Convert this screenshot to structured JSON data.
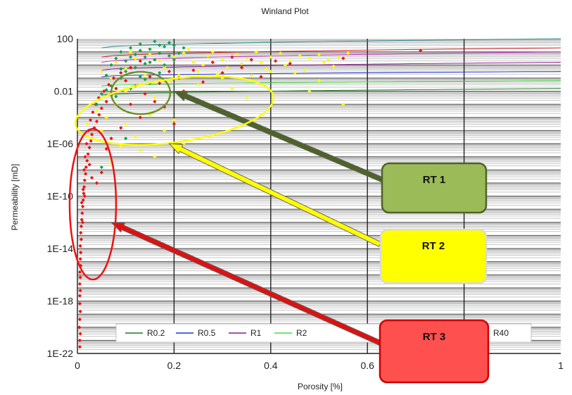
{
  "chart_data": {
    "type": "scatter",
    "title": "Winland Plot",
    "xlabel": "Porosity [%]",
    "ylabel": "Permeability [mD]",
    "xlim": [
      0,
      1
    ],
    "ylim_log10": [
      -22,
      2
    ],
    "y_scale": "log",
    "grid": true,
    "x_ticks": [
      {
        "value": 0,
        "label": "0"
      },
      {
        "value": 0.2,
        "label": "0.2"
      },
      {
        "value": 0.4,
        "label": "0.4"
      },
      {
        "value": 0.6,
        "label": "0.6"
      },
      {
        "value": 1,
        "label": "1"
      }
    ],
    "y_ticks": [
      {
        "log": 2,
        "label": "100"
      },
      {
        "log": -2,
        "label": "0.01"
      },
      {
        "log": -6,
        "label": "1E-06"
      },
      {
        "log": -10,
        "label": "1E-10"
      },
      {
        "log": -14,
        "label": "1E-14"
      },
      {
        "log": -18,
        "label": "1E-18"
      },
      {
        "log": -22,
        "label": "1E-22"
      }
    ],
    "series": [
      {
        "color": "#ffff00",
        "points": [
          [
            0.05,
            -0.5
          ],
          [
            0.07,
            -1
          ],
          [
            0.08,
            0.2
          ],
          [
            0.1,
            -0.3
          ],
          [
            0.12,
            0.5
          ],
          [
            0.14,
            -0.8
          ],
          [
            0.15,
            0.8
          ],
          [
            0.17,
            0.3
          ],
          [
            0.18,
            -0.2
          ],
          [
            0.2,
            0.6
          ],
          [
            0.22,
            0.9
          ],
          [
            0.24,
            0.2
          ],
          [
            0.25,
            -0.5
          ],
          [
            0.27,
            0.7
          ],
          [
            0.28,
            1.0
          ],
          [
            0.3,
            0.4
          ],
          [
            0.31,
            -0.2
          ],
          [
            0.33,
            0.8
          ],
          [
            0.35,
            0.5
          ],
          [
            0.37,
            1.0
          ],
          [
            0.38,
            0.2
          ],
          [
            0.4,
            0.6
          ],
          [
            0.42,
            0.9
          ],
          [
            0.44,
            0.3
          ],
          [
            0.46,
            0.7
          ],
          [
            0.48,
            0.5
          ],
          [
            0.5,
            0.8
          ],
          [
            0.52,
            0.4
          ],
          [
            0.54,
            0.6
          ],
          [
            0.56,
            0.9
          ],
          [
            0.25,
            -1.5
          ],
          [
            0.3,
            -1.0
          ],
          [
            0.32,
            -1.8
          ],
          [
            0.36,
            -0.8
          ],
          [
            0.4,
            -0.5
          ],
          [
            0.45,
            -0.6
          ],
          [
            0.5,
            -1.2
          ],
          [
            0.55,
            -3.0
          ],
          [
            0.48,
            -2.0
          ],
          [
            0.35,
            -2.5
          ],
          [
            0.02,
            -4.5
          ],
          [
            0.04,
            -3.5
          ],
          [
            0.05,
            -5.0
          ],
          [
            0.06,
            -4.0
          ],
          [
            0.08,
            -3.0
          ],
          [
            0.1,
            -4.5
          ],
          [
            0.12,
            -5.5
          ],
          [
            0.15,
            -3.8
          ],
          [
            0.18,
            -5.0
          ],
          [
            0.2,
            -4.2
          ],
          [
            0.22,
            -6.0
          ],
          [
            0.13,
            -6.5
          ],
          [
            0.16,
            -7.0
          ],
          [
            0.09,
            -6.2
          ],
          [
            0.07,
            -7.5
          ],
          [
            0.1,
            -2.0
          ],
          [
            0.13,
            -1.5
          ],
          [
            0.16,
            -2.5
          ],
          [
            0.19,
            -1.2
          ],
          [
            0.21,
            -0.8
          ],
          [
            0.26,
            0.0
          ],
          [
            0.29,
            -0.7
          ],
          [
            0.34,
            0.1
          ],
          [
            0.39,
            -0.3
          ],
          [
            0.43,
            0.0
          ],
          [
            0.47,
            -0.4
          ],
          [
            0.51,
            0.2
          ],
          [
            0.53,
            -0.1
          ],
          [
            0.11,
            1.0
          ],
          [
            0.23,
            1.2
          ]
        ]
      },
      {
        "color": "#ee1111",
        "points": [
          [
            0.005,
            -21.5
          ],
          [
            0.005,
            -21
          ],
          [
            0.006,
            -20.5
          ],
          [
            0.004,
            -20
          ],
          [
            0.005,
            -19.4
          ],
          [
            0.006,
            -18.8
          ],
          [
            0.005,
            -18.2
          ],
          [
            0.005,
            -17.6
          ],
          [
            0.006,
            -17.2
          ],
          [
            0.005,
            -16.7
          ],
          [
            0.006,
            -16.2
          ],
          [
            0.005,
            -15.8
          ],
          [
            0.007,
            -15.3
          ],
          [
            0.006,
            -14.8
          ],
          [
            0.007,
            -14.3
          ],
          [
            0.006,
            -13.8
          ],
          [
            0.008,
            -13.3
          ],
          [
            0.007,
            -12.8
          ],
          [
            0.008,
            -12.3
          ],
          [
            0.009,
            -11.8
          ],
          [
            0.01,
            -11.3
          ],
          [
            0.011,
            -10.8
          ],
          [
            0.012,
            -10.3
          ],
          [
            0.013,
            -9.8
          ],
          [
            0.014,
            -9.3
          ],
          [
            0.015,
            -8.8
          ],
          [
            0.017,
            -8.3
          ],
          [
            0.018,
            -7.8
          ],
          [
            0.02,
            -7.3
          ],
          [
            0.022,
            -6.8
          ],
          [
            0.025,
            -6.3
          ],
          [
            0.028,
            -5.8
          ],
          [
            0.03,
            -5.3
          ],
          [
            0.035,
            -4.8
          ],
          [
            0.04,
            -4.3
          ],
          [
            0.045,
            -3.8
          ],
          [
            0.05,
            -3.3
          ],
          [
            0.06,
            -2.8
          ],
          [
            0.07,
            -2.3
          ],
          [
            0.08,
            -1.8
          ],
          [
            0.009,
            -10.5
          ],
          [
            0.012,
            -9.5
          ],
          [
            0.014,
            -8.0
          ],
          [
            0.016,
            -7.0
          ],
          [
            0.019,
            -6.0
          ],
          [
            0.023,
            -5.0
          ],
          [
            0.027,
            -4.2
          ],
          [
            0.032,
            -3.6
          ],
          [
            0.038,
            -3.0
          ],
          [
            0.044,
            -2.5
          ],
          [
            0.055,
            -2.0
          ],
          [
            0.065,
            -1.5
          ],
          [
            0.075,
            -1.0
          ],
          [
            0.09,
            -0.6
          ],
          [
            0.1,
            -1.2
          ],
          [
            0.11,
            -0.2
          ],
          [
            0.12,
            -1.6
          ],
          [
            0.13,
            0.3
          ],
          [
            0.14,
            -2.2
          ],
          [
            0.15,
            -0.9
          ],
          [
            0.16,
            -2.8
          ],
          [
            0.17,
            -1.4
          ],
          [
            0.18,
            -3.2
          ],
          [
            0.19,
            -0.5
          ],
          [
            0.2,
            -4.5
          ],
          [
            0.21,
            -1.0
          ],
          [
            0.22,
            -2.0
          ],
          [
            0.24,
            -0.4
          ],
          [
            0.26,
            -1.3
          ],
          [
            0.28,
            0.2
          ],
          [
            0.3,
            -0.6
          ],
          [
            0.32,
            0.6
          ],
          [
            0.34,
            -0.2
          ],
          [
            0.36,
            0.4
          ],
          [
            0.38,
            -0.9
          ],
          [
            0.41,
            0.3
          ],
          [
            0.44,
            0.1
          ],
          [
            0.71,
            1.1
          ],
          [
            0.55,
            0.5
          ],
          [
            0.13,
            -4.0
          ],
          [
            0.11,
            -3.0
          ],
          [
            0.09,
            -4.8
          ],
          [
            0.07,
            -5.6
          ],
          [
            0.06,
            -6.4
          ],
          [
            0.05,
            -8.2
          ],
          [
            0.04,
            -9.0
          ],
          [
            0.03,
            -8.6
          ],
          [
            0.025,
            -7.6
          ],
          [
            0.015,
            -10.0
          ],
          [
            0.011,
            -12.0
          ]
        ]
      },
      {
        "color": "#11a34a",
        "points": [
          [
            0.06,
            -0.8
          ],
          [
            0.07,
            0.0
          ],
          [
            0.08,
            0.5
          ],
          [
            0.09,
            1.0
          ],
          [
            0.1,
            0.3
          ],
          [
            0.11,
            1.3
          ],
          [
            0.12,
            0.8
          ],
          [
            0.13,
            1.6
          ],
          [
            0.14,
            0.6
          ],
          [
            0.15,
            1.2
          ],
          [
            0.16,
            1.8
          ],
          [
            0.17,
            0.9
          ],
          [
            0.18,
            1.4
          ],
          [
            0.19,
            0.7
          ],
          [
            0.2,
            1.5
          ],
          [
            0.1,
            -0.5
          ],
          [
            0.12,
            -0.2
          ],
          [
            0.14,
            0.1
          ],
          [
            0.16,
            0.4
          ],
          [
            0.18,
            0.0
          ],
          [
            0.05,
            -2.2
          ],
          [
            0.07,
            -1.6
          ],
          [
            0.09,
            -1.0
          ],
          [
            0.11,
            -1.8
          ],
          [
            0.13,
            -0.9
          ],
          [
            0.15,
            -1.4
          ],
          [
            0.17,
            -0.6
          ],
          [
            0.04,
            -3.0
          ],
          [
            0.08,
            -2.4
          ],
          [
            0.06,
            -1.9
          ],
          [
            0.21,
            0.9
          ],
          [
            0.22,
            1.3
          ],
          [
            0.13,
            1.1
          ],
          [
            0.15,
            0.2
          ],
          [
            0.11,
            0.6
          ],
          [
            0.09,
            -0.3
          ],
          [
            0.19,
            1.7
          ],
          [
            0.17,
            1.5
          ],
          [
            0.2,
            0.4
          ],
          [
            0.14,
            -1.1
          ],
          [
            0.05,
            -7.8
          ],
          [
            0.1,
            -5.6
          ]
        ]
      }
    ],
    "legend": {
      "placement": "bottom",
      "entries": [
        {
          "label": "R0.2",
          "color": "#1b7a1b"
        },
        {
          "label": "R0.5",
          "color": "#2233cc"
        },
        {
          "label": "R1",
          "color": "#8a1a8a"
        },
        {
          "label": "R2",
          "color": "#44dd44"
        },
        {
          "label": "R40",
          "color": "#cc2222"
        }
      ]
    },
    "annotations": [
      {
        "label": "RT 1",
        "fill": "#9bbb59",
        "border": "#4f6228",
        "arrow_color": "#4f6228",
        "ellipse_color": "#6b8e23",
        "target": [
          0.2,
          -2.0
        ]
      },
      {
        "label": "RT 2",
        "fill": "#ffff00",
        "border": "#d9d9d9",
        "arrow_color": "#ffff00",
        "ellipse_color": "#ffff00",
        "target": [
          0.19,
          -6.0
        ]
      },
      {
        "label": "RT 3",
        "fill": "#ff5050",
        "border": "#cc0000",
        "arrow_color": "#dd1111",
        "ellipse_color": "#ee1111",
        "target": [
          0.07,
          -12.0
        ]
      }
    ]
  }
}
